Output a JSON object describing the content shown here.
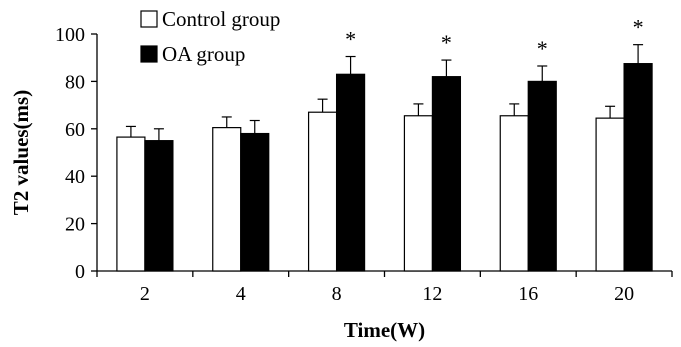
{
  "chart_data": {
    "type": "bar",
    "categories": [
      "2",
      "4",
      "8",
      "12",
      "16",
      "20"
    ],
    "series": [
      {
        "name": "Control group",
        "color": "#ffffff",
        "values": [
          56.5,
          60.5,
          67,
          65.5,
          65.5,
          64.5
        ],
        "errors": [
          4.5,
          4.5,
          5.5,
          5,
          5,
          5
        ]
      },
      {
        "name": "OA group",
        "color": "#000000",
        "values": [
          55,
          58,
          83,
          82,
          80,
          87.5
        ],
        "errors": [
          5,
          5.5,
          7.5,
          7,
          6.5,
          8
        ]
      }
    ],
    "significance": [
      "",
      "",
      "*",
      "*",
      "*",
      "*"
    ],
    "xlabel": "Time(W)",
    "ylabel": "T2 values(ms)",
    "ylim": [
      0,
      100
    ],
    "yticks": [
      "0",
      "20",
      "40",
      "60",
      "80",
      "100"
    ],
    "legend_position": "top-left",
    "grid": false
  }
}
